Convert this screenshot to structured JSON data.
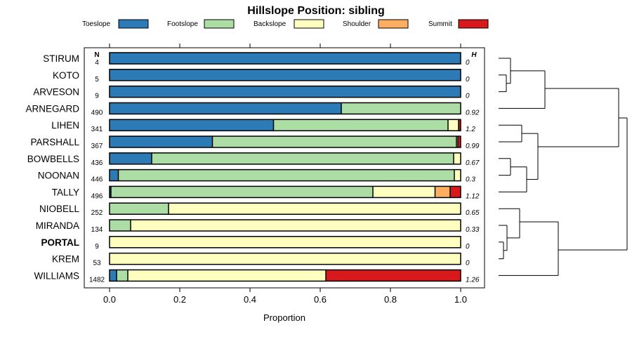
{
  "chart_data": {
    "type": "bar",
    "orientation": "horizontal",
    "stacked": true,
    "title": "Hillslope Position: sibling",
    "xlabel": "Proportion",
    "ylabel": "",
    "xlim": [
      0,
      1
    ],
    "xticks": [
      "0.0",
      "0.2",
      "0.4",
      "0.6",
      "0.8",
      "1.0"
    ],
    "count_header": "N",
    "h_header": "H",
    "legend": [
      {
        "name": "Toeslope",
        "color": "#2c7bb6"
      },
      {
        "name": "Footslope",
        "color": "#abdda4"
      },
      {
        "name": "Backslope",
        "color": "#ffffbf"
      },
      {
        "name": "Shoulder",
        "color": "#fdae61"
      },
      {
        "name": "Summit",
        "color": "#d7191c"
      }
    ],
    "rows": [
      {
        "name": "STIRUM",
        "n": "4",
        "h": "0",
        "bold": false,
        "values": [
          1.0,
          0,
          0,
          0,
          0
        ]
      },
      {
        "name": "KOTO",
        "n": "5",
        "h": "0",
        "bold": false,
        "values": [
          1.0,
          0,
          0,
          0,
          0
        ]
      },
      {
        "name": "ARVESON",
        "n": "9",
        "h": "0",
        "bold": false,
        "values": [
          1.0,
          0,
          0,
          0,
          0
        ]
      },
      {
        "name": "ARNEGARD",
        "n": "490",
        "h": "0.92",
        "bold": false,
        "values": [
          0.66,
          0.34,
          0,
          0,
          0
        ]
      },
      {
        "name": "LIHEN",
        "n": "341",
        "h": "1.2",
        "bold": false,
        "values": [
          0.467,
          0.497,
          0.03,
          0,
          0.006
        ]
      },
      {
        "name": "PARSHALL",
        "n": "367",
        "h": "0.99",
        "bold": false,
        "values": [
          0.293,
          0.695,
          0.004,
          0,
          0.008
        ]
      },
      {
        "name": "BOWBELLS",
        "n": "436",
        "h": "0.67",
        "bold": false,
        "values": [
          0.12,
          0.86,
          0.02,
          0,
          0
        ]
      },
      {
        "name": "NOONAN",
        "n": "446",
        "h": "0.3",
        "bold": false,
        "values": [
          0.025,
          0.957,
          0.018,
          0,
          0
        ]
      },
      {
        "name": "TALLY",
        "n": "496",
        "h": "1.12",
        "bold": false,
        "values": [
          0.004,
          0.746,
          0.177,
          0.043,
          0.03
        ]
      },
      {
        "name": "NIOBELL",
        "n": "252",
        "h": "0.65",
        "bold": false,
        "values": [
          0,
          0.168,
          0.832,
          0,
          0
        ]
      },
      {
        "name": "MIRANDA",
        "n": "134",
        "h": "0.33",
        "bold": false,
        "values": [
          0,
          0.06,
          0.94,
          0,
          0
        ]
      },
      {
        "name": "PORTAL",
        "n": "9",
        "h": "0",
        "bold": true,
        "values": [
          0,
          0,
          1.0,
          0,
          0
        ]
      },
      {
        "name": "KREM",
        "n": "53",
        "h": "0",
        "bold": false,
        "values": [
          0,
          0,
          1.0,
          0,
          0
        ]
      },
      {
        "name": "WILLIAMS",
        "n": "1482",
        "h": "1.26",
        "bold": false,
        "values": [
          0.02,
          0.032,
          0.564,
          0,
          0.384
        ]
      }
    ],
    "dendrogram": true
  }
}
